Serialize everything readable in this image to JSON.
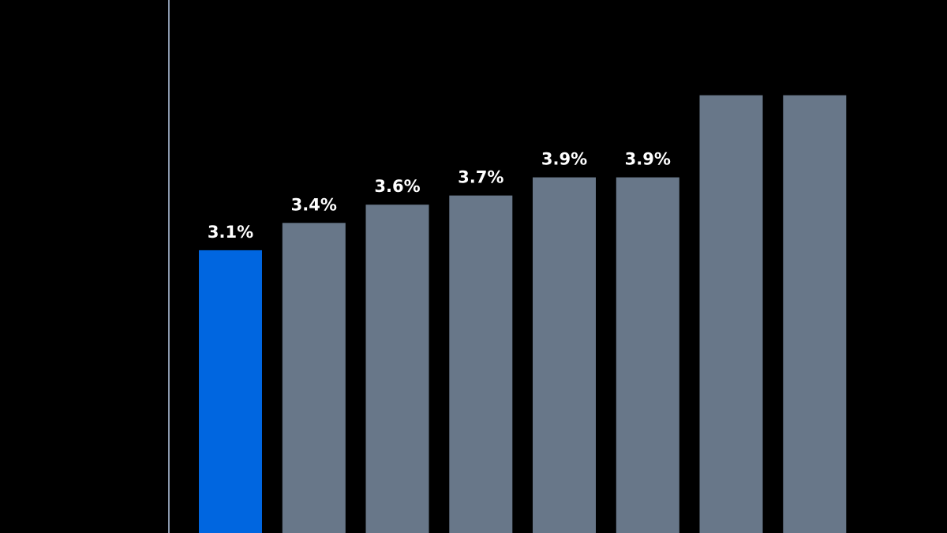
{
  "chart_data": {
    "type": "bar",
    "values": [
      3.1,
      3.4,
      3.6,
      3.7,
      3.9,
      3.9,
      null,
      null
    ],
    "value_labels": [
      "3.1%",
      "3.4%",
      "3.6%",
      "3.7%",
      "3.9%",
      "3.9%",
      "",
      ""
    ],
    "highlight_index": 0,
    "ylim": [
      0,
      4.8
    ],
    "grid": false,
    "legend": "none"
  },
  "colors": {
    "background": "#000000",
    "highlight_bar": "#0066e0",
    "default_bar": "#687789",
    "axis_line": "#8a98ad",
    "label_text": "#ffffff"
  }
}
